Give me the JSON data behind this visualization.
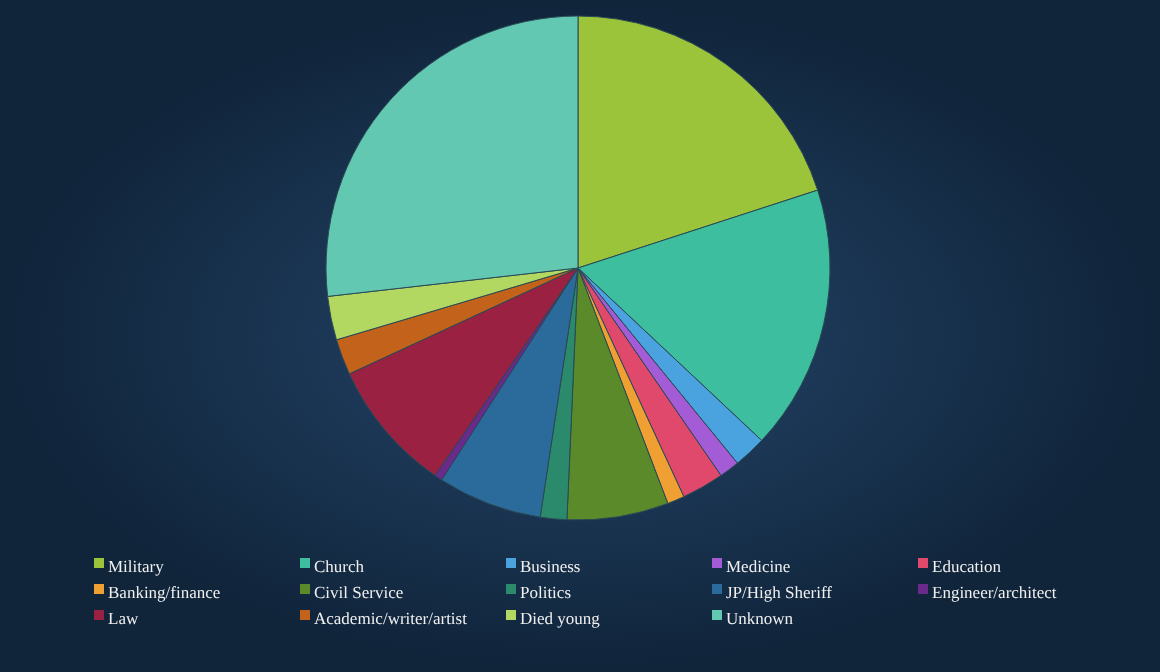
{
  "chart_data": {
    "type": "pie",
    "categories": [
      "Military",
      "Church",
      "Business",
      "Medicine",
      "Education",
      "Banking/finance",
      "Civil Service",
      "Politics",
      "JP/High Sheriff",
      "Engineer/architect",
      "Law",
      "Academic/writer/artist",
      "Died young",
      "Unknown"
    ],
    "values": [
      20.0,
      17.0,
      2.1,
      1.3,
      2.7,
      1.1,
      6.5,
      1.7,
      6.7,
      0.5,
      8.5,
      2.3,
      2.8,
      26.8
    ],
    "colors": [
      "#9cc43a",
      "#3dbf9f",
      "#4aa3df",
      "#a45cd6",
      "#e0486c",
      "#f0a032",
      "#5b8a2b",
      "#2b8a6b",
      "#2b6b9b",
      "#6a2a8c",
      "#9b2142",
      "#c2621b",
      "#b3d862",
      "#62c8b2"
    ],
    "legend": "bottom"
  }
}
